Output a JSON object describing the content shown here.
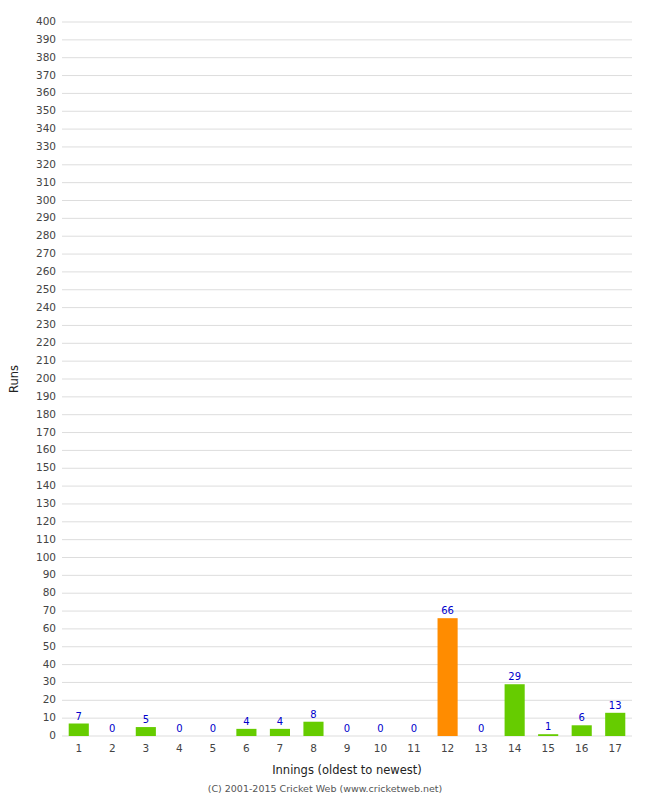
{
  "chart_data": {
    "type": "bar",
    "xlabel": "Innings (oldest to newest)",
    "ylabel": "Runs",
    "categories": [
      "1",
      "2",
      "3",
      "4",
      "5",
      "6",
      "7",
      "8",
      "9",
      "10",
      "11",
      "12",
      "13",
      "14",
      "15",
      "16",
      "17"
    ],
    "values": [
      7,
      0,
      5,
      0,
      0,
      4,
      4,
      8,
      0,
      0,
      0,
      66,
      0,
      29,
      1,
      6,
      13
    ],
    "colors": [
      "#66cc00",
      "#66cc00",
      "#66cc00",
      "#66cc00",
      "#66cc00",
      "#66cc00",
      "#66cc00",
      "#66cc00",
      "#66cc00",
      "#66cc00",
      "#66cc00",
      "#ff8c00",
      "#66cc00",
      "#66cc00",
      "#66cc00",
      "#66cc00",
      "#66cc00"
    ],
    "ylim": [
      0,
      400
    ],
    "yticks": [
      0,
      10,
      20,
      30,
      40,
      50,
      60,
      70,
      80,
      90,
      100,
      110,
      120,
      130,
      140,
      150,
      160,
      170,
      180,
      190,
      200,
      210,
      220,
      230,
      240,
      250,
      260,
      270,
      280,
      290,
      300,
      310,
      320,
      330,
      340,
      350,
      360,
      370,
      380,
      390,
      400
    ],
    "grid": true,
    "data_labels": true,
    "footer": "(C) 2001-2015 Cricket Web (www.cricketweb.net)"
  }
}
